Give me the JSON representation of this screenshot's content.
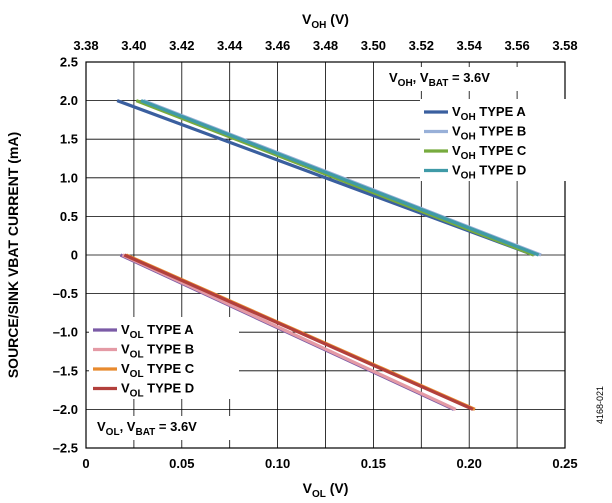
{
  "chart_data": {
    "type": "line",
    "title_top": {
      "main": "V",
      "sub": "OH",
      "unit": " (V)"
    },
    "title_bottom": {
      "main": "V",
      "sub": "OL",
      "unit": " (V)"
    },
    "ylabel": "SOURCE/SINK VBAT CURRENT (mA)",
    "figure_id": "4168-021",
    "y_axis": {
      "range": [
        -2.5,
        2.5
      ],
      "ticks": [
        2.5,
        2.0,
        1.5,
        1.0,
        0.5,
        0,
        -0.5,
        -1.0,
        -1.5,
        -2.0,
        -2.5
      ],
      "tick_labels": [
        "2.5",
        "2.0",
        "1.5",
        "1.0",
        "0.5",
        "0",
        "–0.5",
        "–1.0",
        "–1.5",
        "–2.0",
        "–2.5"
      ]
    },
    "x_top": {
      "range": [
        3.38,
        3.58
      ],
      "ticks": [
        3.38,
        3.4,
        3.42,
        3.44,
        3.46,
        3.48,
        3.5,
        3.52,
        3.54,
        3.56,
        3.58
      ],
      "tick_labels": [
        "3.38",
        "3.40",
        "3.42",
        "3.44",
        "3.46",
        "3.48",
        "3.50",
        "3.52",
        "3.54",
        "3.56",
        "3.58"
      ]
    },
    "x_bottom": {
      "range": [
        0,
        0.25
      ],
      "ticks": [
        0,
        0.05,
        0.1,
        0.15,
        0.2,
        0.25
      ],
      "tick_labels": [
        "0",
        "0.05",
        "0.10",
        "0.15",
        "0.20",
        "0.25"
      ]
    },
    "grid": true,
    "voh_group": {
      "label": {
        "a": "V",
        "a_sub": "OH",
        "mid": ", V",
        "b_sub": "BAT",
        "rest": " = 3.6V"
      },
      "legend_position": "top-right",
      "series": [
        {
          "main": "V",
          "sub": "OH",
          "rest": " TYPE A",
          "color": "#3a5f9f",
          "x": [
            3.393,
            3.567
          ],
          "y": [
            2.0,
            0.0
          ]
        },
        {
          "main": "V",
          "sub": "OH",
          "rest": " TYPE B",
          "color": "#98b0d8",
          "x": [
            3.404,
            3.57
          ],
          "y": [
            2.0,
            0.0
          ]
        },
        {
          "main": "V",
          "sub": "OH",
          "rest": " TYPE C",
          "color": "#77ab3e",
          "x": [
            3.401,
            3.567
          ],
          "y": [
            2.0,
            0.0
          ]
        },
        {
          "main": "V",
          "sub": "OH",
          "rest": " TYPE D",
          "color": "#3f9aa7",
          "x": [
            3.403,
            3.569
          ],
          "y": [
            2.0,
            0.0
          ]
        }
      ]
    },
    "vol_group": {
      "label": {
        "a": "V",
        "a_sub": "OL",
        "mid": ", V",
        "b_sub": "BAT",
        "rest": " = 3.6V"
      },
      "legend_position": "bottom-left",
      "series": [
        {
          "main": "V",
          "sub": "OL",
          "rest": " TYPE A",
          "color": "#7b5ba6",
          "x": [
            0.018,
            0.192
          ],
          "y": [
            0.0,
            -2.0
          ]
        },
        {
          "main": "V",
          "sub": "OL",
          "rest": " TYPE B",
          "color": "#e49aa5",
          "x": [
            0.019,
            0.193
          ],
          "y": [
            0.0,
            -2.0
          ]
        },
        {
          "main": "V",
          "sub": "OL",
          "rest": " TYPE C",
          "color": "#e88a2e",
          "x": [
            0.021,
            0.203
          ],
          "y": [
            0.0,
            -2.0
          ]
        },
        {
          "main": "V",
          "sub": "OL",
          "rest": " TYPE D",
          "color": "#b2403c",
          "x": [
            0.02,
            0.202
          ],
          "y": [
            0.0,
            -2.0
          ]
        }
      ]
    }
  }
}
